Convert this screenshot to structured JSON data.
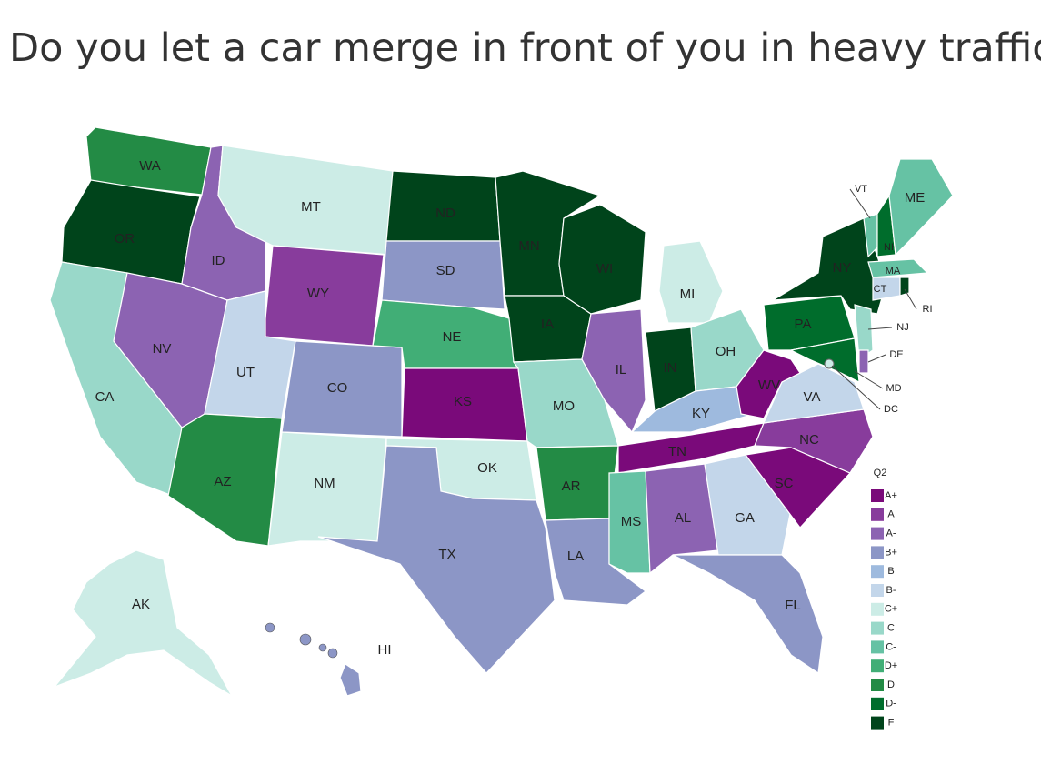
{
  "title": "Do you let a car merge in front of you in heavy traffic?",
  "legend": {
    "title": "Q2",
    "items": [
      {
        "label": "A+",
        "color": "#7a0a7a"
      },
      {
        "label": "A",
        "color": "#883c9c"
      },
      {
        "label": "A-",
        "color": "#8c63b2"
      },
      {
        "label": "B+",
        "color": "#8c96c6"
      },
      {
        "label": "B",
        "color": "#9ebade"
      },
      {
        "label": "B-",
        "color": "#c3d6ea"
      },
      {
        "label": "C+",
        "color": "#ccece6"
      },
      {
        "label": "C",
        "color": "#99d8c9"
      },
      {
        "label": "C-",
        "color": "#66c2a4"
      },
      {
        "label": "D+",
        "color": "#41ae76"
      },
      {
        "label": "D",
        "color": "#238b45"
      },
      {
        "label": "D-",
        "color": "#006d2c"
      },
      {
        "label": "F",
        "color": "#00441b"
      }
    ]
  },
  "states": [
    {
      "label": "WA",
      "grade": "D"
    },
    {
      "label": "OR",
      "grade": "F"
    },
    {
      "label": "CA",
      "grade": "C"
    },
    {
      "label": "NV",
      "grade": "A-"
    },
    {
      "label": "ID",
      "grade": "A-"
    },
    {
      "label": "MT",
      "grade": "C+"
    },
    {
      "label": "WY",
      "grade": "A"
    },
    {
      "label": "UT",
      "grade": "B-"
    },
    {
      "label": "AZ",
      "grade": "D"
    },
    {
      "label": "CO",
      "grade": "B+"
    },
    {
      "label": "NM",
      "grade": "C+"
    },
    {
      "label": "ND",
      "grade": "F"
    },
    {
      "label": "SD",
      "grade": "B+"
    },
    {
      "label": "NE",
      "grade": "D+"
    },
    {
      "label": "KS",
      "grade": "A+"
    },
    {
      "label": "OK",
      "grade": "C+"
    },
    {
      "label": "TX",
      "grade": "B+"
    },
    {
      "label": "MN",
      "grade": "F"
    },
    {
      "label": "IA",
      "grade": "F"
    },
    {
      "label": "MO",
      "grade": "C"
    },
    {
      "label": "AR",
      "grade": "D"
    },
    {
      "label": "LA",
      "grade": "B+"
    },
    {
      "label": "WI",
      "grade": "F"
    },
    {
      "label": "IL",
      "grade": "A-"
    },
    {
      "label": "MI",
      "grade": "C+"
    },
    {
      "label": "IN",
      "grade": "F"
    },
    {
      "label": "OH",
      "grade": "C"
    },
    {
      "label": "KY",
      "grade": "B"
    },
    {
      "label": "TN",
      "grade": "A+"
    },
    {
      "label": "MS",
      "grade": "C-"
    },
    {
      "label": "AL",
      "grade": "A-"
    },
    {
      "label": "GA",
      "grade": "B-"
    },
    {
      "label": "FL",
      "grade": "B+"
    },
    {
      "label": "SC",
      "grade": "A+"
    },
    {
      "label": "NC",
      "grade": "A"
    },
    {
      "label": "VA",
      "grade": "B-"
    },
    {
      "label": "WV",
      "grade": "A+"
    },
    {
      "label": "PA",
      "grade": "D-"
    },
    {
      "label": "NY",
      "grade": "F"
    },
    {
      "label": "VT",
      "grade": "C-"
    },
    {
      "label": "NH",
      "grade": "D-"
    },
    {
      "label": "ME",
      "grade": "C-"
    },
    {
      "label": "MA",
      "grade": "C-"
    },
    {
      "label": "CT",
      "grade": "B-"
    },
    {
      "label": "RI",
      "grade": "F"
    },
    {
      "label": "NJ",
      "grade": "C"
    },
    {
      "label": "DE",
      "grade": "A-"
    },
    {
      "label": "MD",
      "grade": "D-"
    },
    {
      "label": "DC",
      "grade": "C+"
    },
    {
      "label": "AK",
      "grade": "C+"
    },
    {
      "label": "HI",
      "grade": "B+"
    }
  ]
}
